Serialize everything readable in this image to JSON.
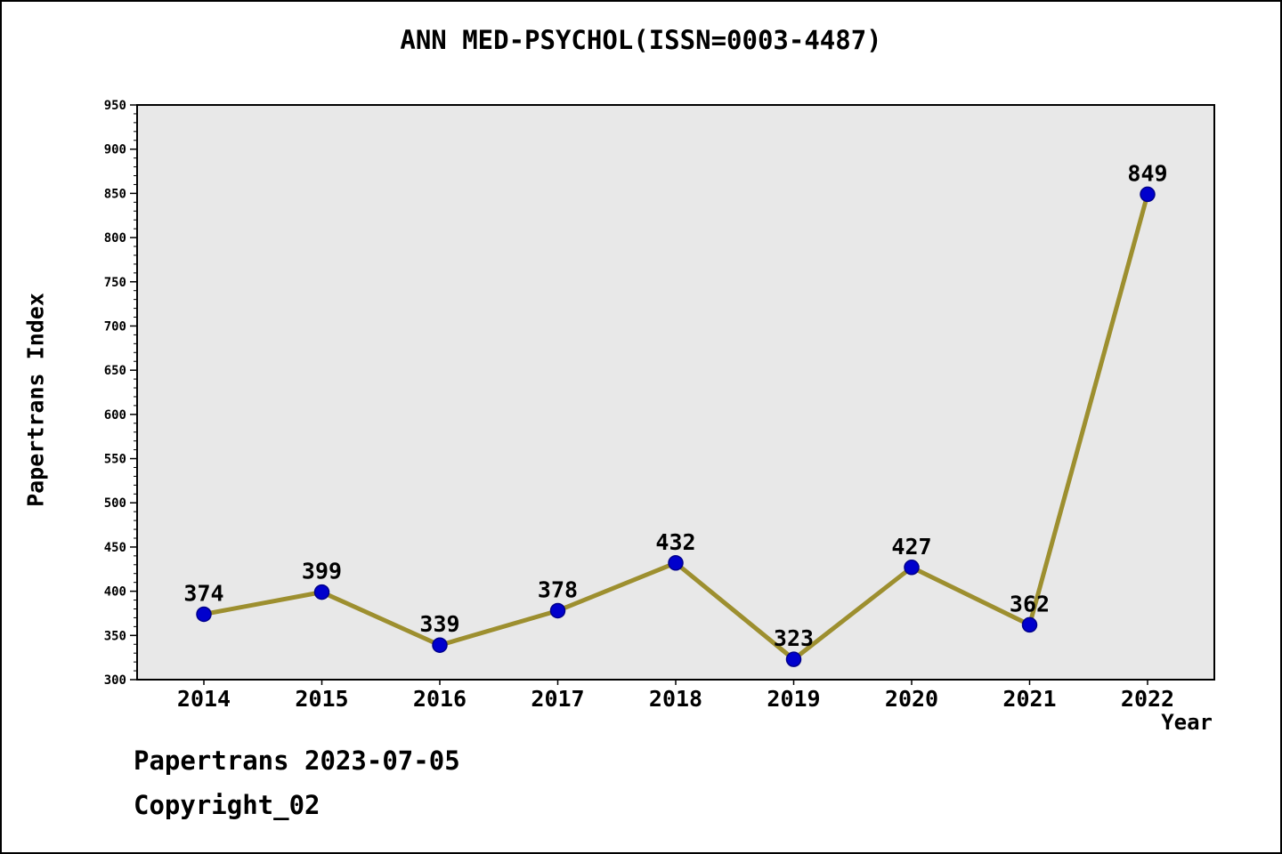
{
  "title": "ANN MED-PSYCHOL(ISSN=0003-4487)",
  "footer": {
    "line1": "Papertrans 2023-07-05",
    "line2": "Copyright_02"
  },
  "chart_data": {
    "type": "line",
    "title": "ANN MED-PSYCHOL(ISSN=0003-4487)",
    "categories": [
      "2014",
      "2015",
      "2016",
      "2017",
      "2018",
      "2019",
      "2020",
      "2021",
      "2022"
    ],
    "values": [
      374,
      399,
      339,
      378,
      432,
      323,
      427,
      362,
      849
    ],
    "xlabel": "Year",
    "ylabel": "Papertrans Index",
    "ylim": [
      300,
      950
    ],
    "ytick_step": 50,
    "yminor_step": 10,
    "grid": false,
    "legend": "none",
    "colors": {
      "line": "#9d8f2f",
      "marker": "#0000cd",
      "marker_edge": "#00008b",
      "plot_bg": "#e8e8e8",
      "axis": "#000000",
      "text": "#000000"
    }
  }
}
